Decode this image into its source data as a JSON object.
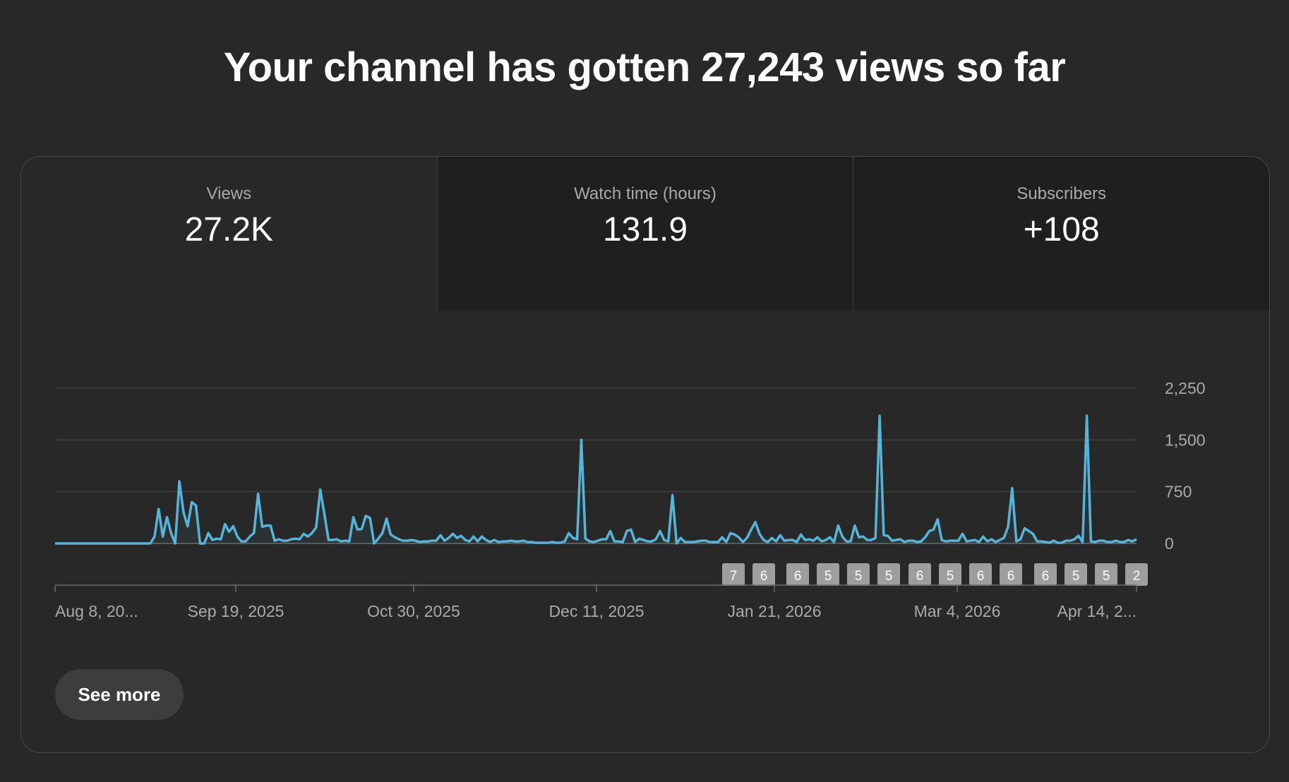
{
  "headline": "Your channel has gotten 27,243 views so far",
  "tabs": [
    {
      "label": "Views",
      "value": "27.2K",
      "selected": true
    },
    {
      "label": "Watch time (hours)",
      "value": "131.9",
      "selected": false
    },
    {
      "label": "Subscribers",
      "value": "+108",
      "selected": false
    }
  ],
  "see_more_label": "See more",
  "colors": {
    "line": "#56b4d8",
    "background": "#282828",
    "grid": "#404040"
  },
  "chart_data": {
    "type": "line",
    "series_name": "Views",
    "x_tick_labels": [
      "Aug 8, 20...",
      "Sep 19, 2025",
      "Oct 30, 2025",
      "Dec 11, 2025",
      "Jan 21, 2026",
      "Mar 4, 2026",
      "Apr 14, 2..."
    ],
    "y_ticks": [
      0,
      750,
      1500,
      2250
    ],
    "y_tick_labels": [
      "0",
      "750",
      "1,500",
      "2,250"
    ],
    "ylim": [
      0,
      2250
    ],
    "grid": true,
    "total_points": 256,
    "values": [
      0,
      0,
      0,
      0,
      0,
      0,
      0,
      0,
      0,
      0,
      0,
      0,
      0,
      0,
      0,
      0,
      0,
      0,
      0,
      0,
      0,
      0,
      0,
      0,
      100,
      500,
      100,
      380,
      150,
      0,
      900,
      450,
      250,
      600,
      550,
      0,
      0,
      150,
      50,
      70,
      60,
      280,
      170,
      250,
      100,
      30,
      30,
      100,
      150,
      720,
      240,
      260,
      260,
      40,
      60,
      40,
      40,
      60,
      70,
      60,
      140,
      100,
      150,
      230,
      780,
      430,
      50,
      50,
      60,
      30,
      40,
      30,
      380,
      200,
      210,
      400,
      370,
      0,
      70,
      150,
      360,
      130,
      90,
      60,
      40,
      40,
      50,
      40,
      20,
      30,
      30,
      40,
      40,
      120,
      40,
      80,
      140,
      80,
      110,
      50,
      30,
      100,
      30,
      100,
      50,
      20,
      50,
      20,
      30,
      30,
      40,
      30,
      30,
      40,
      20,
      20,
      10,
      10,
      10,
      10,
      20,
      10,
      10,
      30,
      150,
      80,
      60,
      1500,
      70,
      30,
      20,
      40,
      60,
      60,
      180,
      30,
      30,
      20,
      180,
      200,
      20,
      70,
      50,
      30,
      30,
      60,
      180,
      50,
      30,
      700,
      0,
      80,
      20,
      20,
      20,
      30,
      40,
      40,
      20,
      20,
      20,
      90,
      20,
      150,
      130,
      90,
      20,
      80,
      200,
      310,
      140,
      50,
      20,
      80,
      30,
      120,
      40,
      50,
      50,
      20,
      130,
      50,
      60,
      40,
      90,
      30,
      50,
      90,
      20,
      260,
      100,
      30,
      30,
      260,
      90,
      100,
      50,
      50,
      80,
      1850,
      120,
      110,
      40,
      50,
      60,
      20,
      40,
      40,
      20,
      30,
      90,
      180,
      200,
      350,
      50,
      30,
      40,
      40,
      40,
      140,
      30,
      40,
      50,
      20,
      100,
      30,
      60,
      20,
      50,
      80,
      240,
      800,
      30,
      60,
      220,
      180,
      140,
      30,
      30,
      20,
      10,
      40,
      10,
      10,
      40,
      40,
      60,
      110,
      20,
      1850,
      30,
      20,
      40,
      40,
      20,
      20,
      40,
      20,
      20,
      50,
      30,
      60
    ]
  },
  "annotations": [
    "7",
    "6",
    "6",
    "5",
    "5",
    "5",
    "6",
    "5",
    "6",
    "6",
    "6",
    "5",
    "5",
    "2"
  ]
}
